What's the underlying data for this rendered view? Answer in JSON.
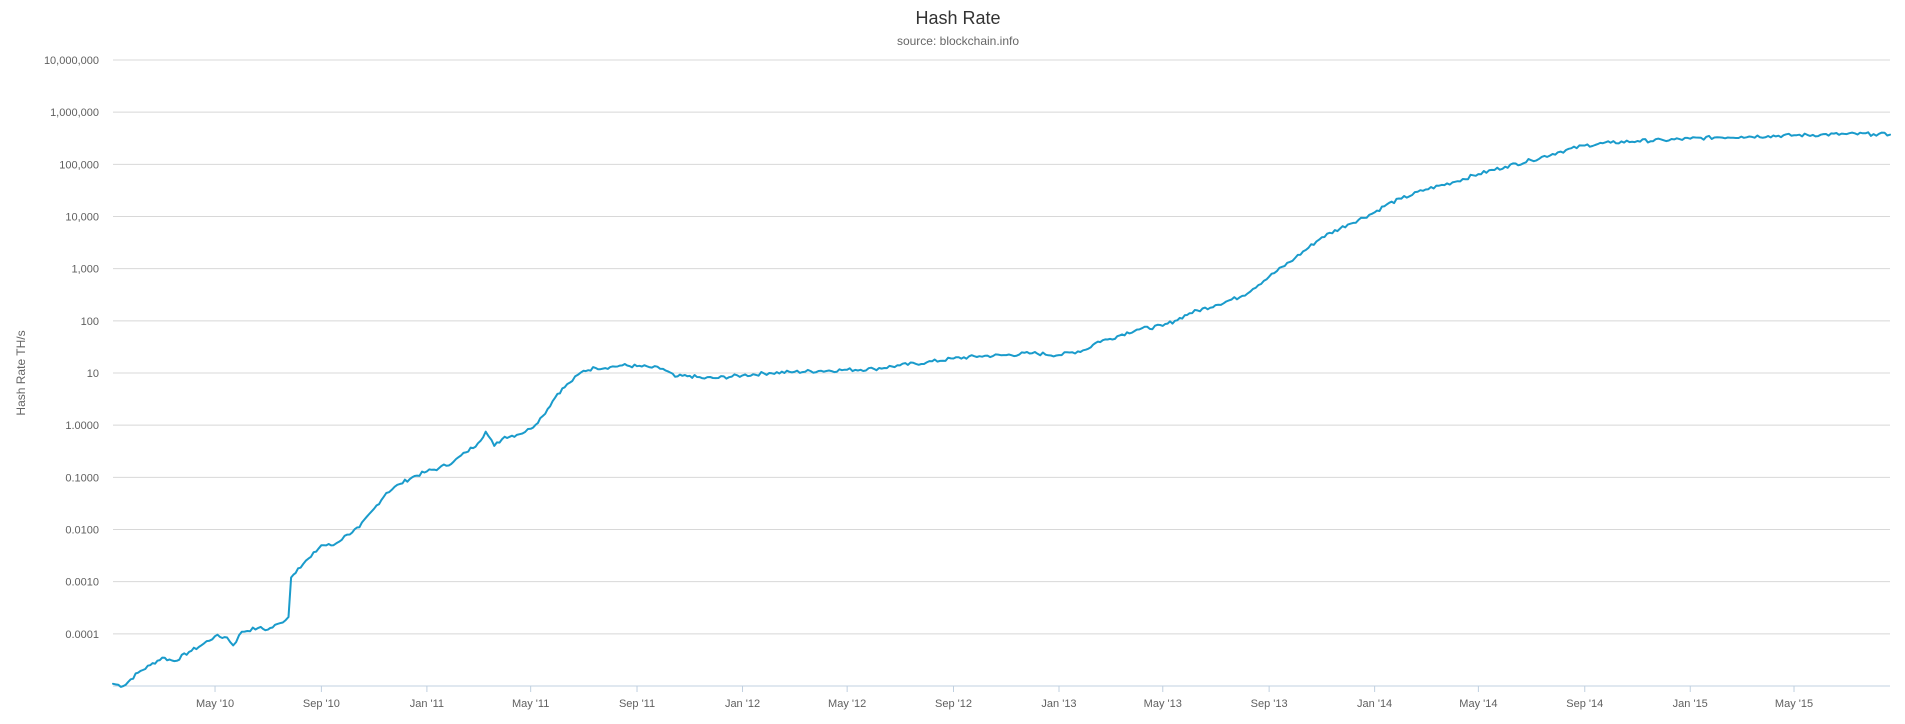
{
  "colors": {
    "series": "#1a9bcb",
    "grid": "#d8d8d8"
  },
  "chart_data": {
    "type": "line",
    "title": "Hash Rate",
    "subtitle": "source: blockchain.info",
    "ylabel": "Hash Rate TH/s",
    "xlabel": "",
    "yscale": "log",
    "ylim": [
      1e-05,
      10000000
    ],
    "xlim": [
      "2010-01-03",
      "2015-08-20"
    ],
    "grid": true,
    "legend": "none",
    "y_ticks": [
      {
        "value": 0.0001,
        "label": "0.0001"
      },
      {
        "value": 0.001,
        "label": "0.0010"
      },
      {
        "value": 0.01,
        "label": "0.0100"
      },
      {
        "value": 0.1,
        "label": "0.1000"
      },
      {
        "value": 1,
        "label": "1.0000"
      },
      {
        "value": 10,
        "label": "10"
      },
      {
        "value": 100,
        "label": "100"
      },
      {
        "value": 1000,
        "label": "1,000"
      },
      {
        "value": 10000,
        "label": "10,000"
      },
      {
        "value": 100000,
        "label": "100,000"
      },
      {
        "value": 1000000,
        "label": "1,000,000"
      },
      {
        "value": 10000000,
        "label": "10,000,000"
      }
    ],
    "x_ticks": [
      {
        "date": "2010-05-01",
        "label": "May '10"
      },
      {
        "date": "2010-09-01",
        "label": "Sep '10"
      },
      {
        "date": "2011-01-01",
        "label": "Jan '11"
      },
      {
        "date": "2011-05-01",
        "label": "May '11"
      },
      {
        "date": "2011-09-01",
        "label": "Sep '11"
      },
      {
        "date": "2012-01-01",
        "label": "Jan '12"
      },
      {
        "date": "2012-05-01",
        "label": "May '12"
      },
      {
        "date": "2012-09-01",
        "label": "Sep '12"
      },
      {
        "date": "2013-01-01",
        "label": "Jan '13"
      },
      {
        "date": "2013-05-01",
        "label": "May '13"
      },
      {
        "date": "2013-09-01",
        "label": "Sep '13"
      },
      {
        "date": "2014-01-01",
        "label": "Jan '14"
      },
      {
        "date": "2014-05-01",
        "label": "May '14"
      },
      {
        "date": "2014-09-01",
        "label": "Sep '14"
      },
      {
        "date": "2015-01-01",
        "label": "Jan '15"
      },
      {
        "date": "2015-05-01",
        "label": "May '15"
      }
    ],
    "series": [
      {
        "name": "",
        "points": [
          [
            "2010-01-03",
            1.1e-05
          ],
          [
            "2010-01-15",
            1e-05
          ],
          [
            "2010-02-01",
            1.8e-05
          ],
          [
            "2010-02-15",
            2.5e-05
          ],
          [
            "2010-03-01",
            3.5e-05
          ],
          [
            "2010-03-15",
            3e-05
          ],
          [
            "2010-04-01",
            4.5e-05
          ],
          [
            "2010-04-15",
            6e-05
          ],
          [
            "2010-05-01",
            9e-05
          ],
          [
            "2010-05-15",
            8.5e-05
          ],
          [
            "2010-05-22",
            6e-05
          ],
          [
            "2010-06-01",
            0.00011
          ],
          [
            "2010-06-20",
            0.00013
          ],
          [
            "2010-07-01",
            0.00012
          ],
          [
            "2010-07-15",
            0.00016
          ],
          [
            "2010-07-25",
            0.00021
          ],
          [
            "2010-07-28",
            0.0012
          ],
          [
            "2010-08-05",
            0.0018
          ],
          [
            "2010-08-20",
            0.003
          ],
          [
            "2010-09-01",
            0.005
          ],
          [
            "2010-09-15",
            0.005
          ],
          [
            "2010-10-01",
            0.008
          ],
          [
            "2010-10-15",
            0.011
          ],
          [
            "2010-11-01",
            0.025
          ],
          [
            "2010-11-15",
            0.05
          ],
          [
            "2010-12-01",
            0.075
          ],
          [
            "2010-12-15",
            0.1
          ],
          [
            "2011-01-01",
            0.13
          ],
          [
            "2011-01-15",
            0.15
          ],
          [
            "2011-02-01",
            0.2
          ],
          [
            "2011-02-15",
            0.3
          ],
          [
            "2011-03-01",
            0.45
          ],
          [
            "2011-03-10",
            0.75
          ],
          [
            "2011-03-20",
            0.4
          ],
          [
            "2011-04-01",
            0.6
          ],
          [
            "2011-04-15",
            0.65
          ],
          [
            "2011-05-01",
            0.85
          ],
          [
            "2011-05-15",
            1.5
          ],
          [
            "2011-06-01",
            4.0
          ],
          [
            "2011-06-15",
            6.5
          ],
          [
            "2011-07-01",
            11
          ],
          [
            "2011-07-15",
            12.5
          ],
          [
            "2011-08-01",
            13
          ],
          [
            "2011-08-15",
            14
          ],
          [
            "2011-09-01",
            13.5
          ],
          [
            "2011-09-15",
            13
          ],
          [
            "2011-10-01",
            12
          ],
          [
            "2011-10-15",
            8.5
          ],
          [
            "2011-11-01",
            8.8
          ],
          [
            "2011-11-15",
            8.0
          ],
          [
            "2011-12-01",
            8.0
          ],
          [
            "2012-01-01",
            9.0
          ],
          [
            "2012-02-01",
            10
          ],
          [
            "2012-03-01",
            10.5
          ],
          [
            "2012-04-01",
            11
          ],
          [
            "2012-05-01",
            11.5
          ],
          [
            "2012-06-01",
            12
          ],
          [
            "2012-07-01",
            14
          ],
          [
            "2012-08-01",
            16
          ],
          [
            "2012-09-01",
            19
          ],
          [
            "2012-10-01",
            21
          ],
          [
            "2012-11-01",
            22
          ],
          [
            "2012-12-01",
            24
          ],
          [
            "2013-01-01",
            22
          ],
          [
            "2013-02-01",
            28
          ],
          [
            "2013-02-15",
            40
          ],
          [
            "2013-03-01",
            45
          ],
          [
            "2013-03-15",
            55
          ],
          [
            "2013-04-01",
            68
          ],
          [
            "2013-05-01",
            80
          ],
          [
            "2013-05-15",
            100
          ],
          [
            "2013-06-01",
            140
          ],
          [
            "2013-07-01",
            200
          ],
          [
            "2013-08-01",
            300
          ],
          [
            "2013-09-01",
            700
          ],
          [
            "2013-10-01",
            1600
          ],
          [
            "2013-11-01",
            4000
          ],
          [
            "2013-12-01",
            7000
          ],
          [
            "2014-01-01",
            12000
          ],
          [
            "2014-01-15",
            17000
          ],
          [
            "2014-02-01",
            22000
          ],
          [
            "2014-03-01",
            33000
          ],
          [
            "2014-04-01",
            45000
          ],
          [
            "2014-05-01",
            65000
          ],
          [
            "2014-06-01",
            90000
          ],
          [
            "2014-07-01",
            120000
          ],
          [
            "2014-08-01",
            170000
          ],
          [
            "2014-09-01",
            230000
          ],
          [
            "2014-10-01",
            260000
          ],
          [
            "2014-11-01",
            280000
          ],
          [
            "2014-12-01",
            290000
          ],
          [
            "2015-01-01",
            310000
          ],
          [
            "2015-02-01",
            330000
          ],
          [
            "2015-03-01",
            340000
          ],
          [
            "2015-04-01",
            350000
          ],
          [
            "2015-05-01",
            360000
          ],
          [
            "2015-06-01",
            370000
          ],
          [
            "2015-07-01",
            380000
          ],
          [
            "2015-08-01",
            380000
          ],
          [
            "2015-08-20",
            370000
          ]
        ]
      }
    ]
  }
}
